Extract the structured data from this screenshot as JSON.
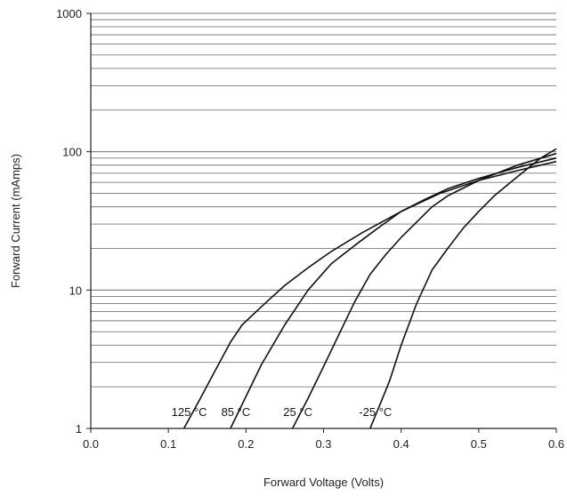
{
  "chart_data": {
    "type": "line",
    "xlabel": "Forward Voltage (Volts)",
    "ylabel": "Forward Current (mAmps)",
    "xlim": [
      0.0,
      0.6
    ],
    "ylim": [
      1,
      1000
    ],
    "y_scale": "log",
    "x_ticks": [
      "0.0",
      "0.1",
      "0.2",
      "0.3",
      "0.4",
      "0.5",
      "0.6"
    ],
    "y_ticks": [
      "1",
      "10",
      "100",
      "1000"
    ],
    "grid": "horizontal",
    "series": [
      {
        "name": "125 °C",
        "points": [
          [
            0.12,
            1.0
          ],
          [
            0.14,
            1.6
          ],
          [
            0.16,
            2.6
          ],
          [
            0.18,
            4.2
          ],
          [
            0.195,
            5.6
          ],
          [
            0.22,
            7.6
          ],
          [
            0.25,
            10.8
          ],
          [
            0.28,
            14.5
          ],
          [
            0.31,
            19.0
          ],
          [
            0.35,
            26.0
          ],
          [
            0.4,
            37.0
          ],
          [
            0.45,
            50.0
          ],
          [
            0.5,
            62.0
          ],
          [
            0.55,
            73.0
          ],
          [
            0.6,
            85.0
          ]
        ]
      },
      {
        "name": "85 °C",
        "points": [
          [
            0.18,
            1.0
          ],
          [
            0.2,
            1.7
          ],
          [
            0.22,
            2.9
          ],
          [
            0.25,
            5.6
          ],
          [
            0.28,
            10.0
          ],
          [
            0.31,
            15.5
          ],
          [
            0.34,
            21.0
          ],
          [
            0.37,
            28.0
          ],
          [
            0.4,
            37.0
          ],
          [
            0.43,
            45.0
          ],
          [
            0.46,
            54.0
          ],
          [
            0.5,
            64.0
          ],
          [
            0.55,
            77.0
          ],
          [
            0.6,
            90.0
          ]
        ]
      },
      {
        "name": "25 °C",
        "points": [
          [
            0.26,
            1.0
          ],
          [
            0.28,
            1.65
          ],
          [
            0.3,
            2.8
          ],
          [
            0.32,
            4.8
          ],
          [
            0.34,
            8.2
          ],
          [
            0.36,
            13.0
          ],
          [
            0.38,
            18.0
          ],
          [
            0.4,
            24.0
          ],
          [
            0.42,
            31.0
          ],
          [
            0.44,
            40.0
          ],
          [
            0.46,
            48.0
          ],
          [
            0.5,
            62.0
          ],
          [
            0.55,
            80.0
          ],
          [
            0.6,
            97.0
          ]
        ]
      },
      {
        "name": "-25 °C",
        "points": [
          [
            0.36,
            1.0
          ],
          [
            0.375,
            1.6
          ],
          [
            0.385,
            2.2
          ],
          [
            0.4,
            4.0
          ],
          [
            0.42,
            8.0
          ],
          [
            0.44,
            14.0
          ],
          [
            0.46,
            20.0
          ],
          [
            0.48,
            28.0
          ],
          [
            0.5,
            37.0
          ],
          [
            0.52,
            48.0
          ],
          [
            0.55,
            66.0
          ],
          [
            0.58,
            90.0
          ],
          [
            0.6,
            105.0
          ]
        ]
      }
    ]
  }
}
